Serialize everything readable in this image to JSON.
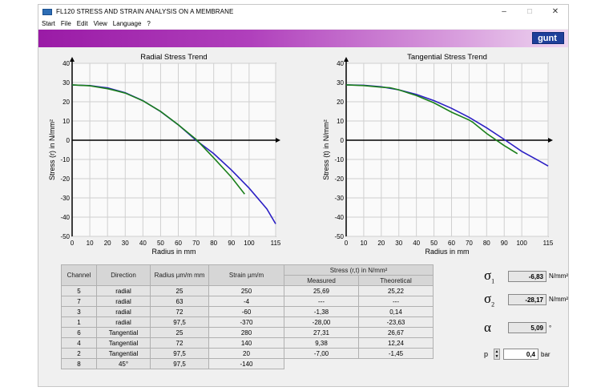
{
  "window": {
    "title": "FL120 STRESS AND STRAIN ANALYSIS ON A MEMBRANE",
    "controls": [
      "–",
      "☐",
      "✕"
    ]
  },
  "menu": [
    "Start",
    "File",
    "Edit",
    "View",
    "Language",
    "?"
  ],
  "logo": "gunt",
  "colors": {
    "measured": "#1a7f1a",
    "theoretical": "#2b1fc4",
    "banner": "#9a1ba6"
  },
  "chart_data": [
    {
      "type": "line",
      "title": "Radial Stress Trend",
      "xlabel": "Radius in mm",
      "ylabel": "Stress (r) in N/mm²",
      "xlim": [
        0,
        115
      ],
      "ylim": [
        -50,
        40
      ],
      "x_ticks": [
        0,
        10,
        20,
        30,
        40,
        50,
        60,
        70,
        80,
        90,
        100,
        115
      ],
      "y_ticks": [
        40,
        30,
        20,
        10,
        0,
        -10,
        -20,
        -30,
        -40,
        -50
      ],
      "grid": true,
      "series": [
        {
          "x": [
            0,
            10,
            20,
            30,
            40,
            50,
            60,
            70,
            80,
            90,
            100,
            110,
            115
          ],
          "y": [
            28.7,
            28.4,
            27.2,
            24.7,
            20.6,
            14.9,
            8.0,
            0,
            -7.0,
            -15.5,
            -24.9,
            -35.7,
            -43.5
          ]
        },
        {
          "x": [
            0,
            10,
            20,
            25,
            30,
            40,
            50,
            60,
            70,
            72,
            80,
            90,
            97.5
          ],
          "y": [
            28.8,
            28.3,
            26.8,
            25.7,
            24.5,
            20.5,
            15.0,
            8.0,
            0.5,
            -1.4,
            -9.2,
            -19.2,
            -28.0
          ]
        }
      ]
    },
    {
      "type": "line",
      "title": "Tangential Stress Trend",
      "xlabel": "Radius in mm",
      "ylabel": "Stress (t) in N/mm²",
      "xlim": [
        0,
        115
      ],
      "ylim": [
        -50,
        40
      ],
      "x_ticks": [
        0,
        10,
        20,
        30,
        40,
        50,
        60,
        70,
        80,
        90,
        100,
        115
      ],
      "y_ticks": [
        40,
        30,
        20,
        10,
        0,
        -10,
        -20,
        -30,
        -40,
        -50
      ],
      "grid": true,
      "series": [
        {
          "x": [
            0,
            10,
            20,
            30,
            40,
            50,
            60,
            70,
            80,
            90,
            100,
            110,
            115
          ],
          "y": [
            28.8,
            28.6,
            27.8,
            26.2,
            23.8,
            20.6,
            16.6,
            11.9,
            6.4,
            0.4,
            -5.8,
            -10.8,
            -13.4
          ]
        },
        {
          "x": [
            0,
            10,
            20,
            25,
            30,
            40,
            50,
            60,
            70,
            72,
            80,
            90,
            97.5
          ],
          "y": [
            28.8,
            28.4,
            27.6,
            27.3,
            26.2,
            23.2,
            19.4,
            14.6,
            10.5,
            9.4,
            3.5,
            -2.8,
            -7.0
          ]
        }
      ]
    }
  ],
  "table": {
    "headers": {
      "channel": "Channel",
      "direction": "Direction",
      "radius": "Radius µm/m mm",
      "strain": "Strain µm/m",
      "stress": "Stress (r,t) in N/mm²",
      "measured": "Measured",
      "theoretical": "Theoretical"
    },
    "rows": [
      {
        "channel": "5",
        "direction": "radial",
        "radius": "25",
        "strain": "250",
        "measured": "25,69",
        "theoretical": "25,22"
      },
      {
        "channel": "7",
        "direction": "radial",
        "radius": "63",
        "strain": "-4",
        "measured": "---",
        "theoretical": "---"
      },
      {
        "channel": "3",
        "direction": "radial",
        "radius": "72",
        "strain": "-60",
        "measured": "-1,38",
        "theoretical": "0,14"
      },
      {
        "channel": "1",
        "direction": "radial",
        "radius": "97,5",
        "strain": "-370",
        "measured": "-28,00",
        "theoretical": "-23,63"
      },
      {
        "channel": "6",
        "direction": "Tangential",
        "radius": "25",
        "strain": "280",
        "measured": "27,31",
        "theoretical": "26,67"
      },
      {
        "channel": "4",
        "direction": "Tangential",
        "radius": "72",
        "strain": "140",
        "measured": "9,38",
        "theoretical": "12,24"
      },
      {
        "channel": "2",
        "direction": "Tangential",
        "radius": "97,5",
        "strain": "20",
        "measured": "-7,00",
        "theoretical": "-1,45"
      },
      {
        "channel": "8",
        "direction": "45°",
        "radius": "97,5",
        "strain": "-140",
        "measured": "",
        "theoretical": ""
      }
    ]
  },
  "results": {
    "sigma1": {
      "label": "σ",
      "sub": "1",
      "value": "-6,83",
      "unit": "N/mm²"
    },
    "sigma2": {
      "label": "σ",
      "sub": "2",
      "value": "-28,17",
      "unit": "N/mm²"
    },
    "alpha": {
      "label": "α",
      "value": "5,09",
      "unit": "°"
    },
    "pressure": {
      "label": "p",
      "value": "0,4",
      "unit": "bar"
    }
  }
}
